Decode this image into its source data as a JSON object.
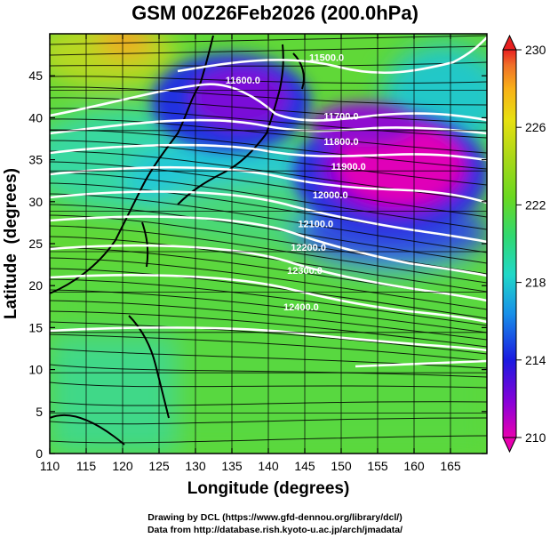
{
  "title": "GSM 00Z26Feb2026 (200.0hPa)",
  "credit_drawing": "Drawing by DCL (https://www.gfd-dennou.org/library/dcl/)",
  "credit_data": "Data from http://database.rish.kyoto-u.ac.jp/arch/jmadata/",
  "chart_data": {
    "type": "heatmap",
    "title": "GSM 00Z26Feb2026 (200.0hPa)",
    "xlabel": "Longitude (degrees)",
    "ylabel": "Latitude  (degrees)",
    "xlim": [
      110,
      170
    ],
    "ylim": [
      0,
      50
    ],
    "x_ticks": [
      110,
      115,
      120,
      125,
      130,
      135,
      140,
      145,
      150,
      155,
      160,
      165
    ],
    "y_ticks": [
      0,
      5,
      10,
      15,
      20,
      25,
      30,
      35,
      40,
      45
    ],
    "colorbar": {
      "label_ticks": [
        210,
        214,
        218,
        222,
        226,
        230
      ],
      "min": 210,
      "max": 230,
      "colors": [
        "#e800b0",
        "#8a00d8",
        "#1a1ae0",
        "#1890e8",
        "#20d8c8",
        "#30d870",
        "#6ad820",
        "#a8d818",
        "#e8e010",
        "#f8b018",
        "#f07028",
        "#e82020"
      ]
    },
    "contours": [
      {
        "level": "11500.0",
        "label_lon": 148,
        "label_lat": 47.2
      },
      {
        "level": "11600.0",
        "label_lon": 136.5,
        "label_lat": 44.5
      },
      {
        "level": "11700.0",
        "label_lon": 150,
        "label_lat": 40.2
      },
      {
        "level": "11800.0",
        "label_lon": 150,
        "label_lat": 37.2
      },
      {
        "level": "11900.0",
        "label_lon": 151,
        "label_lat": 34.2
      },
      {
        "level": "12000.0",
        "label_lon": 148.5,
        "label_lat": 30.8
      },
      {
        "level": "12100.0",
        "label_lon": 146.5,
        "label_lat": 27.4
      },
      {
        "level": "12200.0",
        "label_lon": 145.5,
        "label_lat": 24.6
      },
      {
        "level": "12300.0",
        "label_lon": 145,
        "label_lat": 21.8
      },
      {
        "level": "12400.0",
        "label_lon": 144.5,
        "label_lat": 17.5
      }
    ],
    "field_notes": {
      "temperature_min_region": "strong low near 35-40N, 150-160E (pink, ~210)",
      "temperature_max_region": "near 50N, 118-122E (orange, ~228)"
    }
  }
}
